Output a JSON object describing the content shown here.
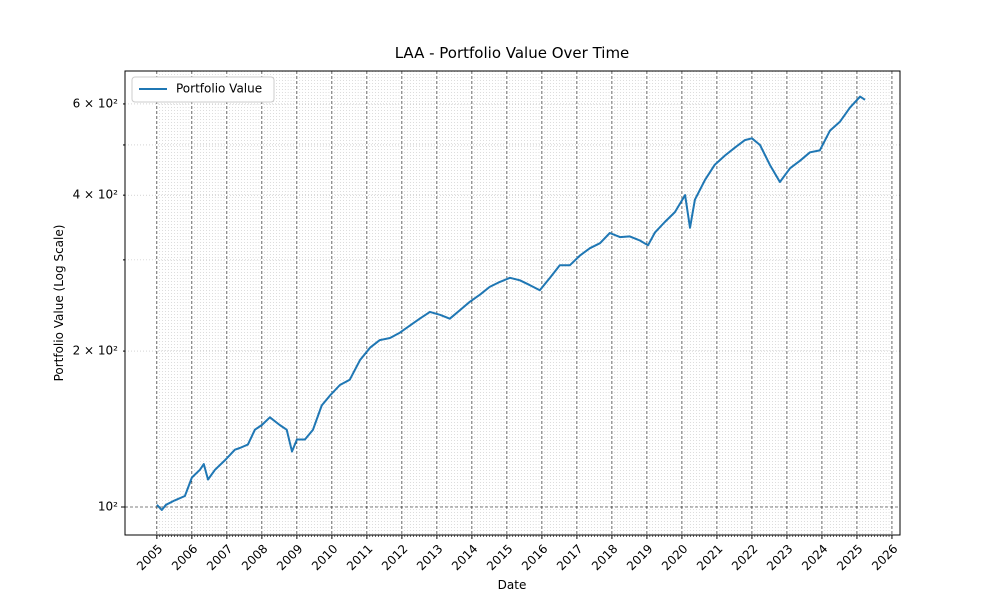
{
  "chart_data": {
    "type": "line",
    "title": "LAA - Portfolio Value Over Time",
    "xlabel": "Date",
    "ylabel": "Portfolio Value (Log Scale)",
    "log_y": true,
    "grid": true,
    "legend": "upper left",
    "xlim": [
      2004.09,
      2026.23
    ],
    "xticks": [
      2005,
      2006,
      2007,
      2008,
      2009,
      2010,
      2011,
      2012,
      2013,
      2014,
      2015,
      2016,
      2017,
      2018,
      2019,
      2020,
      2021,
      2022,
      2023,
      2024,
      2025,
      2026
    ],
    "ylim": [
      88.3,
      694.6
    ],
    "yticks": [
      {
        "value": 100,
        "label": "10²"
      },
      {
        "value": 200,
        "label": "2 × 10²"
      },
      {
        "value": 400,
        "label": "4 × 10²"
      },
      {
        "value": 600,
        "label": "6 × 10²"
      }
    ],
    "yminorticks": [
      300,
      500
    ],
    "x": [
      2005.0,
      2005.14,
      2005.26,
      2005.51,
      2005.8,
      2006.0,
      2006.23,
      2006.34,
      2006.46,
      2006.66,
      2006.94,
      2007.23,
      2007.37,
      2007.6,
      2007.8,
      2008.0,
      2008.23,
      2008.51,
      2008.71,
      2008.86,
      2009.0,
      2009.23,
      2009.46,
      2009.71,
      2009.94,
      2010.23,
      2010.51,
      2010.8,
      2011.09,
      2011.37,
      2011.66,
      2011.94,
      2012.23,
      2012.51,
      2012.8,
      2013.09,
      2013.37,
      2013.66,
      2013.94,
      2014.23,
      2014.51,
      2014.8,
      2015.09,
      2015.37,
      2015.66,
      2015.94,
      2016.23,
      2016.51,
      2016.8,
      2017.09,
      2017.37,
      2017.66,
      2017.94,
      2018.23,
      2018.51,
      2018.8,
      2019.03,
      2019.23,
      2019.51,
      2019.8,
      2020.09,
      2020.23,
      2020.37,
      2020.66,
      2020.94,
      2021.23,
      2021.51,
      2021.8,
      2022.0,
      2022.23,
      2022.51,
      2022.8,
      2023.09,
      2023.37,
      2023.66,
      2023.94,
      2024.23,
      2024.51,
      2024.8,
      2025.09,
      2025.23
    ],
    "series": [
      {
        "name": "Portfolio Value",
        "color": "#1f77b4",
        "values": [
          101,
          98.7,
          101,
          103,
          105,
          114,
          118,
          121,
          113,
          118,
          123,
          129,
          130,
          132,
          141,
          144,
          149,
          144,
          141,
          128,
          135,
          135,
          141,
          157,
          164,
          172,
          176,
          192,
          203,
          210,
          212,
          217,
          224,
          231,
          238,
          235,
          231,
          240,
          249,
          257,
          266,
          272,
          277,
          274,
          268,
          262,
          277,
          293,
          293,
          306,
          316,
          323,
          338,
          332,
          333,
          327,
          320,
          339,
          355,
          371,
          400,
          346,
          392,
          428,
          458,
          477,
          494,
          511,
          515,
          500,
          458,
          424,
          451,
          466,
          484,
          488,
          533,
          554,
          590,
          620,
          611
        ]
      }
    ]
  }
}
